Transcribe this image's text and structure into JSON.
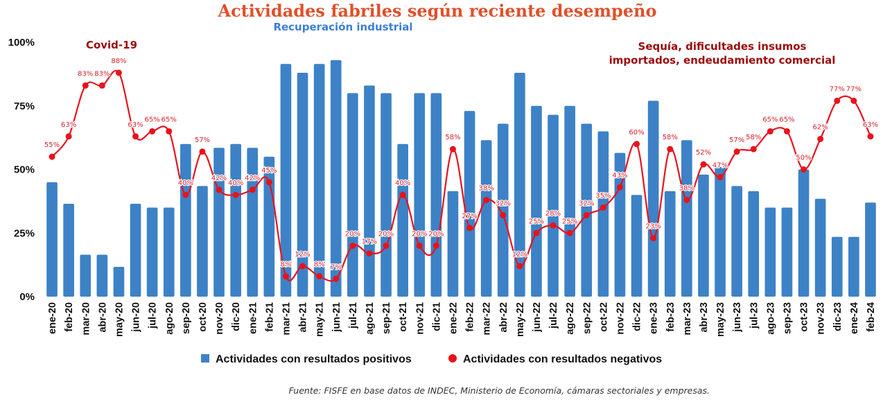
{
  "chart_data": {
    "type": "bar",
    "title": "Actividades fabriles según reciente desempeño",
    "subtitle": "Recuperación industrial",
    "annotations": [
      {
        "text": "Covid-19"
      },
      {
        "text": "Sequía, dificultades insumos"
      },
      {
        "text": "importados, endeudamiento comercial"
      }
    ],
    "xlabel": "",
    "ylabel": "",
    "ylim": [
      0,
      100
    ],
    "yticks": [
      "0%",
      "25%",
      "50%",
      "75%",
      "100%"
    ],
    "ytick_values": [
      0,
      25,
      50,
      75,
      100
    ],
    "grid": false,
    "legend_position": "bottom",
    "categories": [
      "ene-20",
      "feb-20",
      "mar-20",
      "abr-20",
      "may-20",
      "jun-20",
      "jul-20",
      "ago-20",
      "sep-20",
      "oct-20",
      "nov-20",
      "dic-20",
      "ene-21",
      "feb-21",
      "mar-21",
      "abr-21",
      "may-21",
      "jun-21",
      "jul-21",
      "ago-21",
      "sep-21",
      "oct-21",
      "nov-21",
      "dic-21",
      "ene-22",
      "feb-22",
      "mar-22",
      "abr-22",
      "may-22",
      "jun-22",
      "jul-22",
      "ago-22",
      "sep-22",
      "oct-22",
      "nov-22",
      "dic-22",
      "ene-23",
      "feb-23",
      "mar-23",
      "abr-23",
      "may-23",
      "jun-23",
      "jul-23",
      "ago-23",
      "sep-23",
      "oct-23",
      "nov-23",
      "dic-23",
      "ene-24",
      "feb-24"
    ],
    "series": [
      {
        "name": "Actividades con resultados positivos",
        "type": "bar",
        "color": "#3d82c6",
        "values": [
          45,
          36.5,
          16.5,
          16.5,
          11.7,
          36.5,
          35,
          35,
          60,
          43.5,
          58.5,
          60,
          58.5,
          55,
          91.5,
          88,
          91.5,
          93,
          80,
          83,
          80,
          60,
          80,
          80,
          41.5,
          73,
          61.5,
          68,
          88,
          75,
          71.5,
          75,
          68,
          65,
          56.5,
          40,
          77,
          41.5,
          61.5,
          48,
          51,
          43.5,
          41.5,
          35,
          35,
          50,
          38.5,
          23.5,
          23.5,
          37
        ]
      },
      {
        "name": "Actividades con resultados negativos",
        "type": "line",
        "color": "#e8121c",
        "values": [
          55,
          63,
          83,
          83,
          88,
          63,
          65,
          65,
          40,
          57,
          42,
          40,
          42,
          45,
          8,
          12,
          8,
          7,
          20,
          17,
          20,
          40,
          20,
          20,
          58,
          27,
          38,
          32,
          12,
          25,
          28,
          25,
          32,
          35,
          43,
          60,
          23,
          58,
          38,
          52,
          47,
          57,
          58,
          65,
          65,
          50,
          62,
          77,
          77,
          63
        ],
        "labels": [
          "55%",
          "63%",
          "83%",
          "83%",
          "88%",
          "63%",
          "65%",
          "65%",
          "40%",
          "57%",
          "42%",
          "40%",
          "42%",
          "45%",
          "8%",
          "12%",
          "8%",
          "7%",
          "20%",
          "17%",
          "20%",
          "40%",
          "20%",
          "20%",
          "58%",
          "27%",
          "38%",
          "32%",
          "12%",
          "25%",
          "28%",
          "25%",
          "32%",
          "35%",
          "43%",
          "60%",
          "23%",
          "58%",
          "38%",
          "52%",
          "47%",
          "57%",
          "58%",
          "65%",
          "65%",
          "50%",
          "62%",
          "77%",
          "77%",
          "63%"
        ]
      }
    ],
    "source": "Fuente: FISFE en base datos de INDEC, Ministerio de Economía, cámaras sectoriales y empresas."
  }
}
